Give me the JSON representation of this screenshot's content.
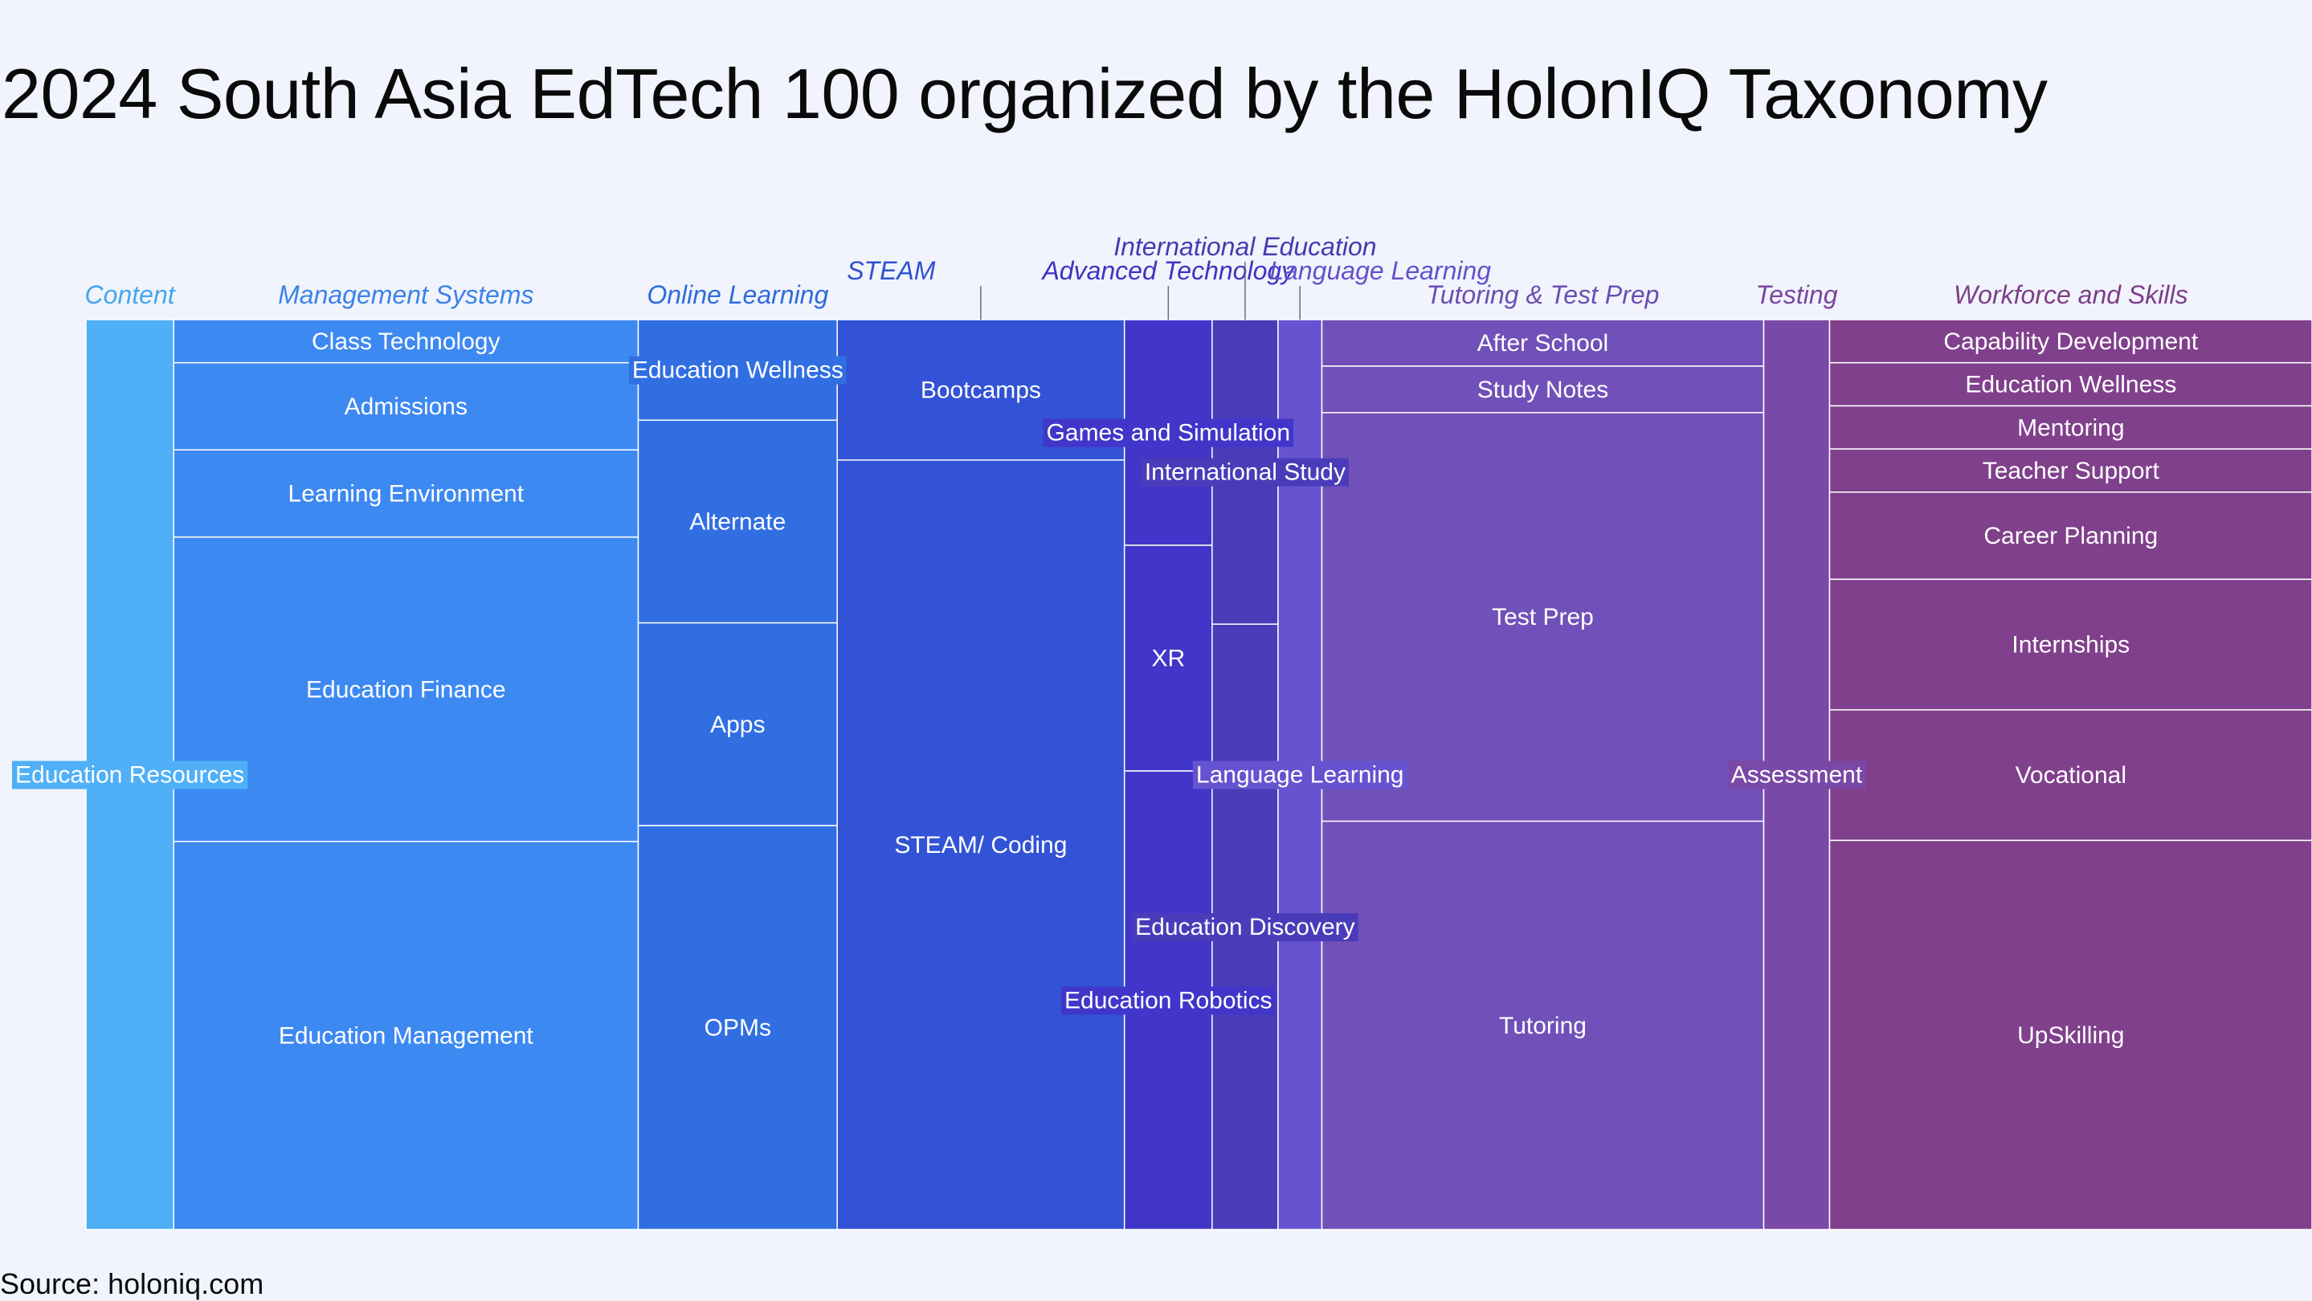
{
  "title": "2024 South Asia EdTech 100 organized by the HolonIQ Taxonomy",
  "source": "Source: holoniq.com",
  "chart_data": {
    "type": "marimekko",
    "title": "2024 South Asia EdTech 100 organized by the HolonIQ Taxonomy",
    "categories": [
      {
        "name": "Content",
        "share": 0.0394,
        "color": "#4fb0f7",
        "label_color": "#46a6ee",
        "segments": [
          {
            "name": "Education Resources",
            "share": 1.0
          }
        ]
      },
      {
        "name": "Management Systems",
        "share": 0.2087,
        "color": "#3d89f2",
        "label_color": "#3b82e8",
        "segments": [
          {
            "name": "Class Technology",
            "share": 0.0474
          },
          {
            "name": "Admissions",
            "share": 0.0958
          },
          {
            "name": "Learning Environment",
            "share": 0.0958
          },
          {
            "name": "Education Finance",
            "share": 0.3345
          },
          {
            "name": "Education Management",
            "share": 0.4265
          }
        ]
      },
      {
        "name": "Online Learning",
        "share": 0.0894,
        "color": "#316ee2",
        "label_color": "#2e6bdd",
        "segments": [
          {
            "name": "Education Wellness",
            "share": 0.1105
          },
          {
            "name": "Alternate",
            "share": 0.2228
          },
          {
            "name": "Apps",
            "share": 0.2228
          },
          {
            "name": "OPMs",
            "share": 0.4439
          }
        ]
      },
      {
        "name": "STEAM",
        "share": 0.129,
        "color": "#3253d5",
        "label_color": "#2f51cf",
        "segments": [
          {
            "name": "Bootcamps",
            "share": 0.1543
          },
          {
            "name": "STEAM/ Coding",
            "share": 0.8457
          }
        ]
      },
      {
        "name": "Advanced Technology",
        "share": 0.0394,
        "color": "#4136c9",
        "label_color": "#3d34c0",
        "segments": [
          {
            "name": "Games and Simulation",
            "share": 0.248
          },
          {
            "name": "XR",
            "share": 0.248
          },
          {
            "name": "Education Robotics",
            "share": 0.504
          }
        ]
      },
      {
        "name": "International Education",
        "share": 0.0296,
        "color": "#4a3cb9",
        "label_color": "#4938b0",
        "segments": [
          {
            "name": "International Study",
            "share": 0.3347
          },
          {
            "name": "Education Discovery",
            "share": 0.6653
          }
        ]
      },
      {
        "name": "Language Learning",
        "share": 0.0197,
        "color": "#6553d0",
        "label_color": "#6450cb",
        "segments": [
          {
            "name": "Language Learning",
            "share": 1.0
          }
        ]
      },
      {
        "name": "Tutoring & Test Prep",
        "share": 0.1985,
        "color": "#7150b9",
        "label_color": "#6c4db3",
        "segments": [
          {
            "name": "After School",
            "share": 0.0511
          },
          {
            "name": "Study Notes",
            "share": 0.0511
          },
          {
            "name": "Test Prep",
            "share": 0.4491
          },
          {
            "name": "Tutoring",
            "share": 0.4487
          }
        ]
      },
      {
        "name": "Testing",
        "share": 0.0296,
        "color": "#7a48a6",
        "label_color": "#7a459f",
        "segments": [
          {
            "name": "Assessment",
            "share": 1.0
          }
        ]
      },
      {
        "name": "Workforce and Skills",
        "share": 0.2167,
        "color": "#80408b",
        "label_color": "#7d3e88",
        "segments": [
          {
            "name": "Capability Development",
            "share": 0.0474
          },
          {
            "name": "Education Wellness",
            "share": 0.0474
          },
          {
            "name": "Mentoring",
            "share": 0.0474
          },
          {
            "name": "Teacher Support",
            "share": 0.0474
          },
          {
            "name": "Career Planning",
            "share": 0.0958
          },
          {
            "name": "Internships",
            "share": 0.1435
          },
          {
            "name": "Vocational",
            "share": 0.1435
          },
          {
            "name": "UpSkilling",
            "share": 0.4276
          }
        ]
      }
    ]
  }
}
